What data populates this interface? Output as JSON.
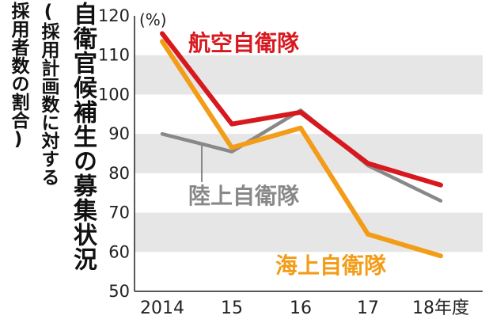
{
  "chart_data": {
    "type": "line",
    "title": "自衛官候補生の募集状況",
    "subtitle_line1": "(採用計画数に対する",
    "subtitle_line2": "採用者数の割合)",
    "ylabel": "(%)",
    "ylim": [
      50,
      120
    ],
    "yticks": [
      50,
      60,
      70,
      80,
      90,
      100,
      110,
      120
    ],
    "grid": "alternating horizontal bands",
    "categories": [
      "2014",
      "15",
      "16",
      "17",
      "18年度"
    ],
    "series": [
      {
        "name": "航空自衛隊",
        "color": "#d7191f",
        "values": [
          115.5,
          92.5,
          95.5,
          82.5,
          77
        ]
      },
      {
        "name": "陸上自衛隊",
        "color": "#888888",
        "values": [
          90,
          85.5,
          96,
          82,
          73
        ]
      },
      {
        "name": "海上自衛隊",
        "color": "#f39c18",
        "values": [
          113.5,
          86.5,
          91.5,
          64.5,
          59
        ]
      }
    ]
  }
}
